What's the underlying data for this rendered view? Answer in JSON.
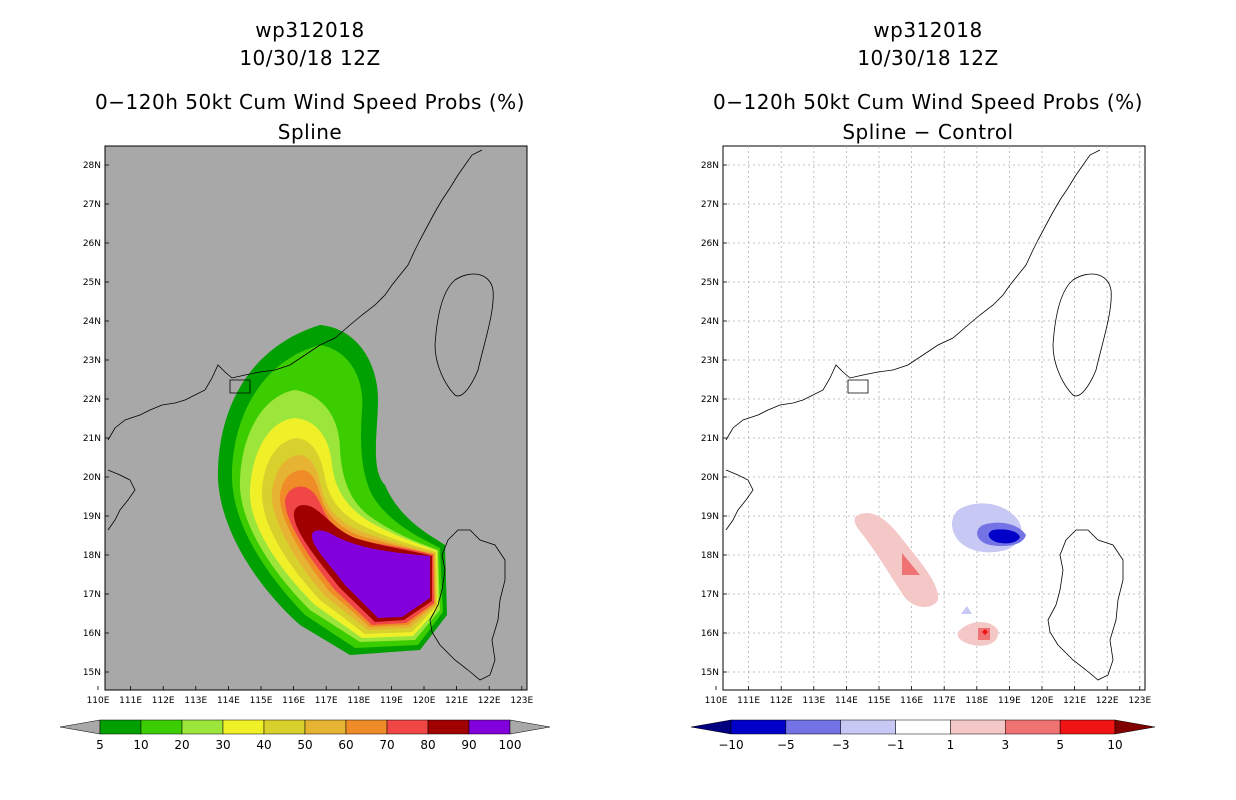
{
  "panels": [
    {
      "storm_id": "wp312018",
      "datetime": "10/30/18 12Z",
      "product": "0−120h 50kt Cum Wind Speed Probs (%)",
      "subtitle": "Spline",
      "colorbar_labels": [
        "5",
        "10",
        "20",
        "30",
        "40",
        "50",
        "60",
        "70",
        "80",
        "90",
        "100"
      ],
      "colorbar_colors": [
        "#00a000",
        "#3ccd00",
        "#9ce63c",
        "#f0f028",
        "#d8d02c",
        "#e6b432",
        "#f08c28",
        "#f04646",
        "#a00000",
        "#8200dc"
      ]
    },
    {
      "storm_id": "wp312018",
      "datetime": "10/30/18 12Z",
      "product": "0−120h 50kt Cum Wind Speed Probs (%)",
      "subtitle": "Spline − Control",
      "colorbar_labels": [
        "−10",
        "−5",
        "−3",
        "−1",
        "1",
        "3",
        "5",
        "10"
      ],
      "colorbar_colors": [
        "#0000c8",
        "#7373e6",
        "#c8c8f5",
        "#ffffff",
        "#f5c8c8",
        "#f07373",
        "#f01414"
      ]
    }
  ],
  "axes": {
    "lon_ticks": [
      "110E",
      "111E",
      "112E",
      "113E",
      "114E",
      "115E",
      "116E",
      "117E",
      "118E",
      "119E",
      "120E",
      "121E",
      "122E",
      "123E"
    ],
    "lat_ticks": [
      "28N",
      "27N",
      "26N",
      "25N",
      "24N",
      "23N",
      "22N",
      "21N",
      "20N",
      "19N",
      "18N",
      "17N",
      "16N",
      "15N"
    ]
  }
}
